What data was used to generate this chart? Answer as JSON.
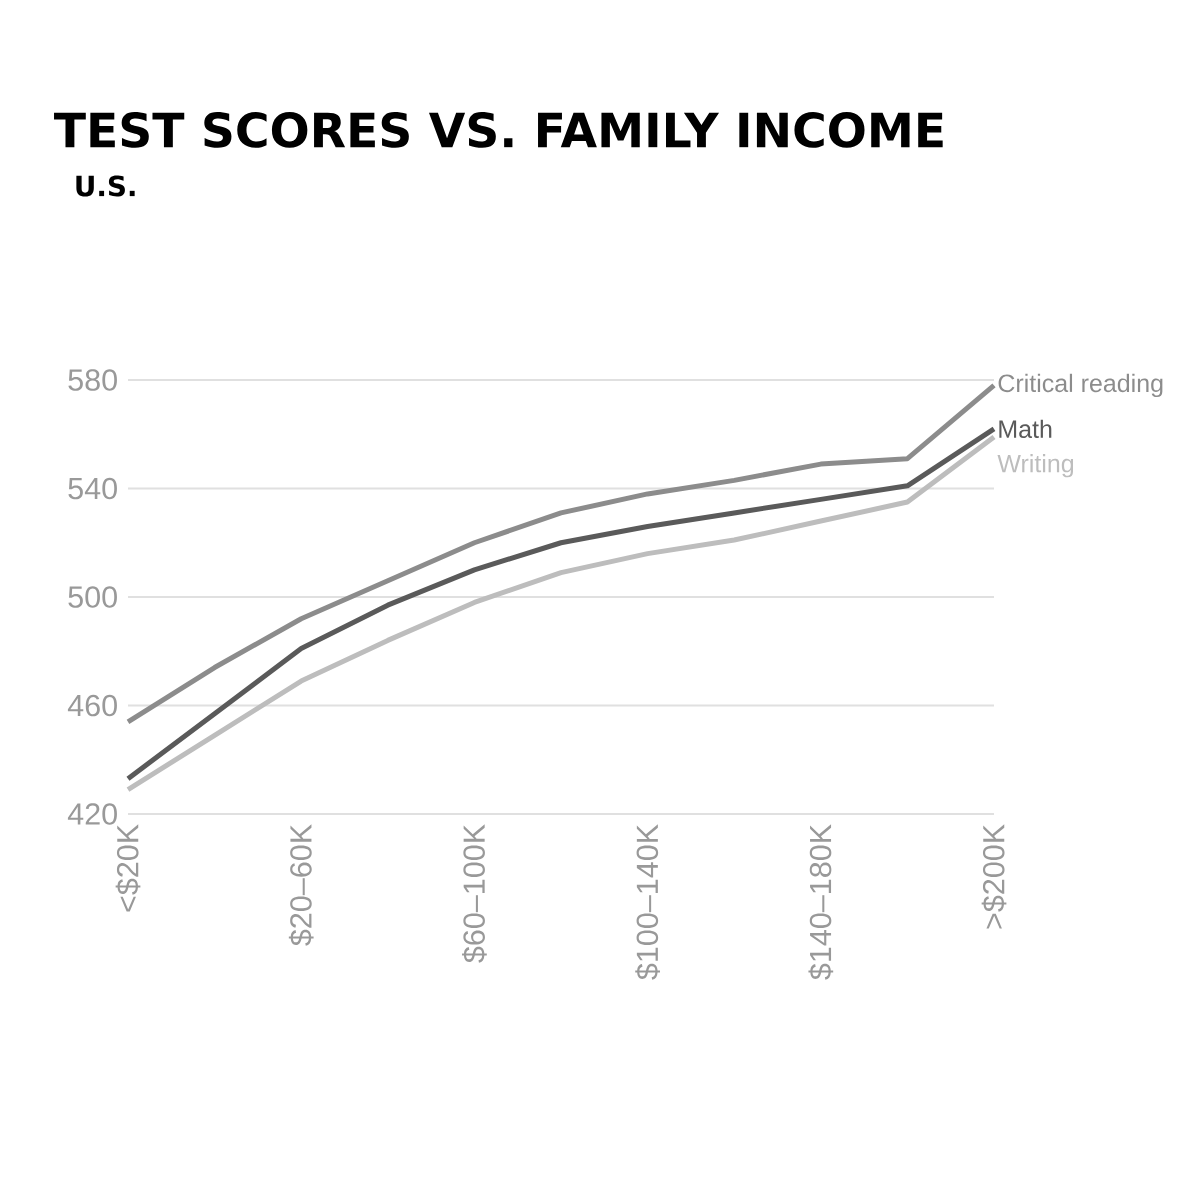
{
  "chart_data": {
    "type": "line",
    "title": "TEST SCORES VS. FAMILY INCOME",
    "subtitle": "U.S.",
    "categories": [
      "<$20K",
      null,
      "$20–60K",
      null,
      "$60–100K",
      null,
      "$100–140K",
      null,
      "$140–180K",
      null,
      ">$200K"
    ],
    "series": [
      {
        "name": "Critical reading",
        "color": "#8c8c8c",
        "values": [
          454,
          474,
          492,
          506,
          520,
          531,
          538,
          543,
          549,
          551,
          578
        ]
      },
      {
        "name": "Math",
        "color": "#5a5a5a",
        "values": [
          433,
          457,
          481,
          497,
          510,
          520,
          526,
          531,
          536,
          541,
          562
        ]
      },
      {
        "name": "Writing",
        "color": "#bdbdbd",
        "values": [
          429,
          449,
          469,
          484,
          498,
          509,
          516,
          521,
          528,
          535,
          559
        ]
      }
    ],
    "ylim": [
      420,
      580
    ],
    "yticks": [
      420,
      460,
      500,
      540,
      580
    ],
    "grid": "y",
    "legend": false,
    "marker": "none",
    "line_style": "solid"
  }
}
